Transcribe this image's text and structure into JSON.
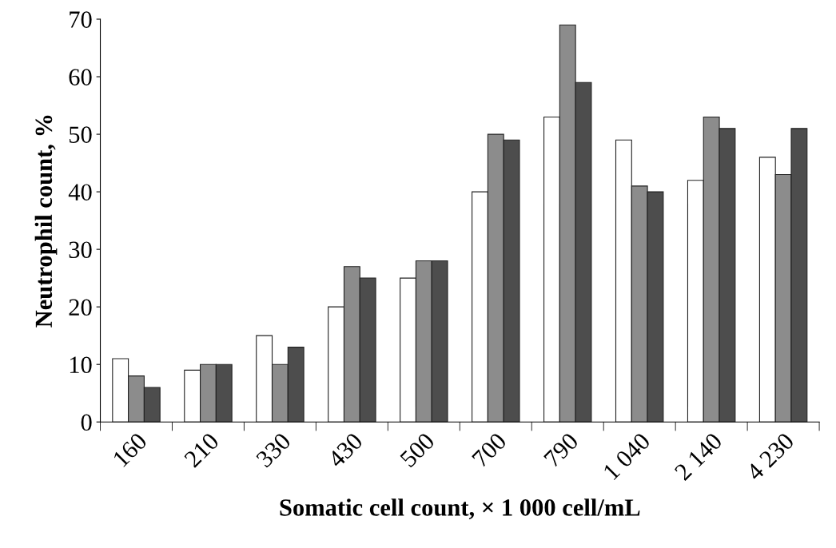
{
  "chart_data": {
    "type": "bar",
    "xlabel": "Somatic cell count, × 1 000 cell/mL",
    "ylabel": "Neutrophil count, %",
    "categories": [
      "160",
      "210",
      "330",
      "430",
      "500",
      "700",
      "790",
      "1 040",
      "2 140",
      "4 230"
    ],
    "series": [
      {
        "color": "#ffffff",
        "values": [
          11,
          9,
          15,
          20,
          25,
          40,
          53,
          49,
          42,
          46
        ]
      },
      {
        "color": "#8c8c8c",
        "values": [
          8,
          10,
          10,
          27,
          28,
          50,
          69,
          41,
          53,
          43
        ]
      },
      {
        "color": "#4d4d4d",
        "values": [
          6,
          10,
          13,
          25,
          28,
          49,
          59,
          40,
          51,
          51
        ]
      }
    ],
    "ylim": [
      0,
      70
    ],
    "yticks": [
      0,
      10,
      20,
      30,
      40,
      50,
      60,
      70
    ],
    "grid": false
  }
}
